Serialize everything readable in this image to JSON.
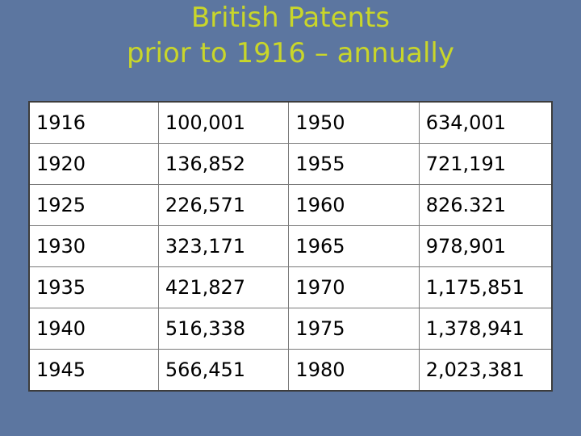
{
  "title": {
    "line1": "British Patents",
    "line2": "prior to 1916 – annually"
  },
  "table": {
    "rows": [
      {
        "year_a": "1916",
        "value_a": "100,001",
        "year_b": "1950",
        "value_b": "634,001"
      },
      {
        "year_a": "1920",
        "value_a": "136,852",
        "year_b": "1955",
        "value_b": "721,191"
      },
      {
        "year_a": "1925",
        "value_a": "226,571",
        "year_b": "1960",
        "value_b": "826.321"
      },
      {
        "year_a": "1930",
        "value_a": "323,171",
        "year_b": "1965",
        "value_b": "978,901"
      },
      {
        "year_a": "1935",
        "value_a": "421,827",
        "year_b": "1970",
        "value_b": "1,175,851"
      },
      {
        "year_a": "1940",
        "value_a": "516,338",
        "year_b": "1975",
        "value_b": "1,378,941"
      },
      {
        "year_a": "1945",
        "value_a": "566,451",
        "year_b": "1980",
        "value_b": "2,023,381"
      }
    ]
  },
  "colors": {
    "background": "#5c76a0",
    "title": "#c9d62a",
    "table_background": "#ffffff"
  }
}
